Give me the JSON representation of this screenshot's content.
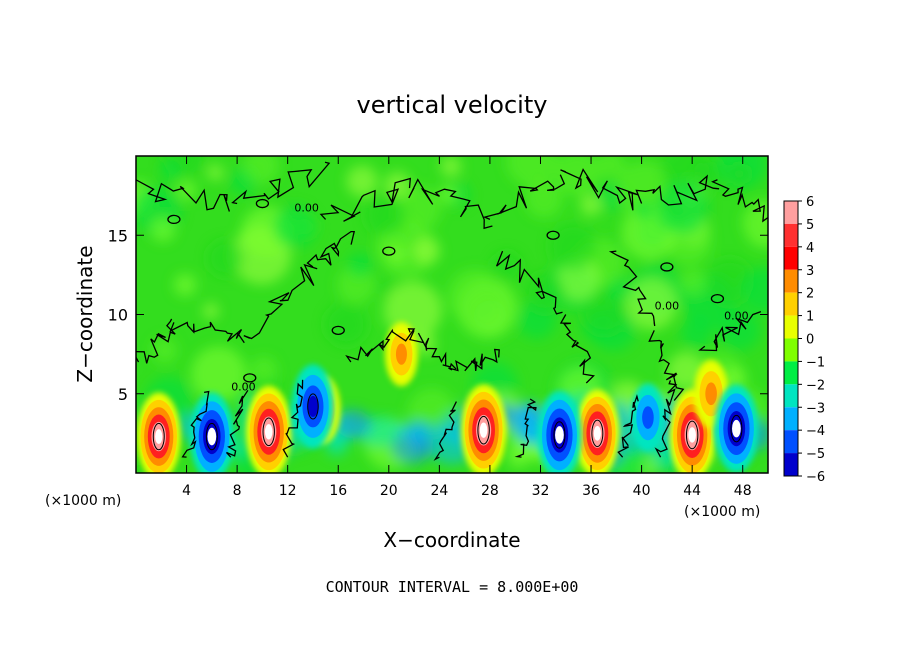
{
  "chart_data": {
    "type": "heatmap",
    "title": "vertical velocity",
    "xlabel": "X−coordinate",
    "ylabel": "Z−coordinate",
    "x_unit_left": "(×1000 m)",
    "x_unit_right": "(×1000 m)",
    "xlim": [
      0,
      50
    ],
    "ylim": [
      0,
      20
    ],
    "x_ticks": [
      4,
      8,
      12,
      16,
      20,
      24,
      28,
      32,
      36,
      40,
      44,
      48
    ],
    "y_ticks": [
      5,
      10,
      15
    ],
    "colorbar": {
      "levels": [
        "6",
        "5",
        "4",
        "3",
        "2",
        "1",
        "0",
        "−1",
        "−2",
        "−3",
        "−4",
        "−5",
        "−6"
      ],
      "colors": [
        "#ff9f9f",
        "#ff3030",
        "#ff0000",
        "#ff8c00",
        "#ffd000",
        "#e8ff00",
        "#7fff00",
        "#00ee44",
        "#00e5c0",
        "#00b0ff",
        "#0050ff",
        "#0000cc",
        "#8000c0"
      ]
    },
    "contour_labels": [
      "0.00",
      "0.00",
      "0.00",
      "0.00"
    ],
    "footer": "CONTOUR INTERVAL = 8.000E+00",
    "updrafts": [
      {
        "x": 1.8,
        "z": 2.3,
        "w": 5.5
      },
      {
        "x": 10.5,
        "z": 2.6,
        "w": 6
      },
      {
        "x": 14.8,
        "z": 4.0,
        "w": 3
      },
      {
        "x": 21.0,
        "z": 7.5,
        "w": 2.5
      },
      {
        "x": 27.5,
        "z": 2.7,
        "w": 6
      },
      {
        "x": 36.5,
        "z": 2.5,
        "w": 5.5
      },
      {
        "x": 44.0,
        "z": 2.4,
        "w": 6
      },
      {
        "x": 45.5,
        "z": 5.0,
        "w": 3
      }
    ],
    "downdrafts": [
      {
        "x": 6.0,
        "z": 2.3,
        "w": -5.5
      },
      {
        "x": 14.0,
        "z": 4.2,
        "w": -5
      },
      {
        "x": 33.5,
        "z": 2.4,
        "w": -5.5
      },
      {
        "x": 47.5,
        "z": 2.8,
        "w": -5.5
      },
      {
        "x": 40.5,
        "z": 3.5,
        "w": -3
      }
    ]
  }
}
